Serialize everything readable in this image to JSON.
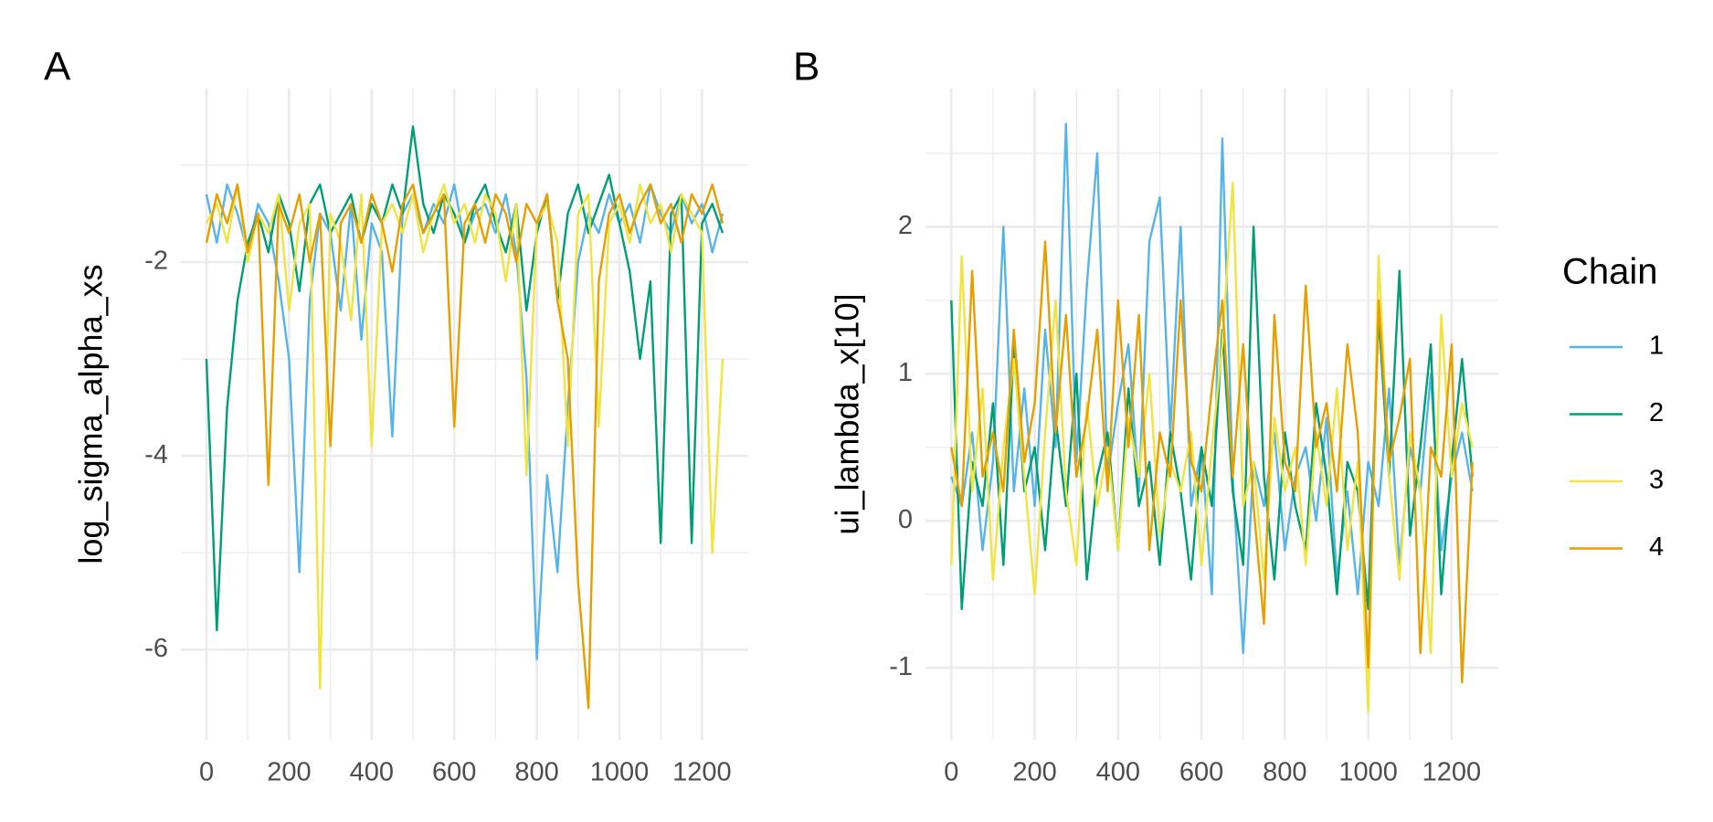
{
  "chart_data": [
    {
      "type": "line",
      "title": "A",
      "y_label": "log_sigma_alpha_xs",
      "x": [
        0,
        25,
        50,
        75,
        100,
        125,
        150,
        175,
        200,
        225,
        250,
        275,
        300,
        325,
        350,
        375,
        400,
        425,
        450,
        475,
        500,
        525,
        550,
        575,
        600,
        625,
        650,
        675,
        700,
        725,
        750,
        775,
        800,
        825,
        850,
        875,
        900,
        925,
        950,
        975,
        1000,
        1025,
        1050,
        1075,
        1100,
        1125,
        1150,
        1175,
        1200,
        1225,
        1250
      ],
      "xlim": [
        -62,
        1312
      ],
      "xticks": [
        0,
        200,
        400,
        600,
        800,
        1000,
        1200
      ],
      "minor_xticks": [
        100,
        300,
        500,
        700,
        900,
        1100
      ],
      "ylim": [
        -6.93,
        -0.21
      ],
      "yticks": [
        -6,
        -4,
        -2
      ],
      "minor_yticks": [
        -5,
        -3,
        -1
      ],
      "grid": true,
      "series": [
        {
          "color": "#56b4e9",
          "values": [
            -1.3,
            -1.8,
            -1.2,
            -1.5,
            -1.9,
            -1.4,
            -1.6,
            -2.2,
            -3.0,
            -5.2,
            -2.4,
            -1.5,
            -1.7,
            -2.5,
            -1.4,
            -2.8,
            -1.6,
            -1.9,
            -3.8,
            -1.5,
            -1.3,
            -1.7,
            -1.4,
            -1.6,
            -1.2,
            -1.8,
            -1.5,
            -1.4,
            -1.7,
            -1.3,
            -1.9,
            -3.2,
            -6.1,
            -4.2,
            -5.2,
            -3.5,
            -2.0,
            -1.5,
            -1.7,
            -1.3,
            -1.6,
            -1.4,
            -1.8,
            -1.2,
            -1.5,
            -1.7,
            -1.3,
            -1.6,
            -1.4,
            -1.9,
            -1.5
          ]
        },
        {
          "color": "#009e73",
          "values": [
            -3.0,
            -5.8,
            -3.5,
            -2.4,
            -1.8,
            -1.5,
            -1.9,
            -1.3,
            -1.6,
            -2.3,
            -1.4,
            -1.2,
            -1.7,
            -1.5,
            -1.3,
            -1.8,
            -1.4,
            -1.6,
            -1.2,
            -1.5,
            -0.6,
            -1.4,
            -1.7,
            -1.3,
            -1.5,
            -1.8,
            -1.4,
            -1.2,
            -1.6,
            -1.9,
            -1.4,
            -2.5,
            -1.7,
            -1.3,
            -2.4,
            -1.5,
            -1.2,
            -1.7,
            -1.4,
            -1.1,
            -1.6,
            -2.1,
            -3.0,
            -2.2,
            -4.9,
            -1.5,
            -1.3,
            -4.9,
            -1.6,
            -1.4,
            -1.7
          ]
        },
        {
          "color": "#f0e442",
          "values": [
            -1.6,
            -1.4,
            -1.8,
            -1.2,
            -2.0,
            -1.5,
            -1.7,
            -1.3,
            -2.5,
            -1.6,
            -1.4,
            -6.4,
            -1.5,
            -1.8,
            -2.6,
            -1.3,
            -3.9,
            -1.6,
            -1.4,
            -1.7,
            -1.3,
            -1.9,
            -1.5,
            -1.2,
            -1.6,
            -1.4,
            -1.8,
            -1.3,
            -1.5,
            -2.2,
            -1.4,
            -4.2,
            -1.6,
            -1.4,
            -1.8,
            -3.9,
            -1.5,
            -1.3,
            -3.7,
            -1.6,
            -1.4,
            -1.8,
            -1.2,
            -1.6,
            -1.4,
            -1.9,
            -1.3,
            -1.5,
            -1.7,
            -5.0,
            -3.0
          ]
        },
        {
          "color": "#e69f00",
          "values": [
            -1.8,
            -1.3,
            -1.6,
            -1.2,
            -1.9,
            -1.5,
            -4.3,
            -1.4,
            -1.7,
            -1.3,
            -2.0,
            -1.5,
            -3.9,
            -1.6,
            -1.4,
            -1.8,
            -1.3,
            -1.6,
            -2.1,
            -1.4,
            -1.2,
            -1.7,
            -1.5,
            -1.3,
            -3.7,
            -1.6,
            -1.4,
            -1.8,
            -1.3,
            -1.5,
            -2.0,
            -1.4,
            -1.6,
            -1.3,
            -2.4,
            -3.0,
            -5.3,
            -6.6,
            -2.2,
            -1.5,
            -1.3,
            -1.7,
            -1.4,
            -1.2,
            -1.6,
            -1.4,
            -1.8,
            -1.3,
            -1.5,
            -1.2,
            -1.6
          ]
        }
      ]
    },
    {
      "type": "line",
      "title": "B",
      "y_label": "ui_lambda_x[10]",
      "legend_title": "Chain",
      "x": [
        0,
        25,
        50,
        75,
        100,
        125,
        150,
        175,
        200,
        225,
        250,
        275,
        300,
        325,
        350,
        375,
        400,
        425,
        450,
        475,
        500,
        525,
        550,
        575,
        600,
        625,
        650,
        675,
        700,
        725,
        750,
        775,
        800,
        825,
        850,
        875,
        900,
        925,
        950,
        975,
        1000,
        1025,
        1050,
        1075,
        1100,
        1125,
        1150,
        1175,
        1200,
        1225,
        1250
      ],
      "xlim": [
        -62,
        1312
      ],
      "xticks": [
        0,
        200,
        400,
        600,
        800,
        1000,
        1200
      ],
      "minor_xticks": [
        100,
        300,
        500,
        700,
        900,
        1100
      ],
      "ylim": [
        -1.49,
        2.94
      ],
      "yticks": [
        -1,
        0,
        1,
        2
      ],
      "minor_yticks": [
        -0.5,
        0.5,
        1.5,
        2.5
      ],
      "grid": true,
      "series": [
        {
          "name": "1",
          "color": "#56b4e9",
          "values": [
            0.3,
            0.1,
            0.6,
            -0.2,
            0.4,
            2.0,
            0.2,
            0.9,
            0.1,
            1.3,
            0.5,
            2.7,
            0.4,
            1.6,
            2.5,
            0.3,
            0.8,
            1.2,
            0.2,
            1.9,
            2.2,
            0.6,
            2.0,
            0.1,
            0.5,
            -0.5,
            2.6,
            0.3,
            -0.9,
            0.4,
            0.1,
            0.6,
            -0.2,
            0.3,
            0.5,
            0.0,
            0.7,
            -0.4,
            0.2,
            -0.5,
            0.4,
            0.1,
            0.9,
            -0.3,
            0.5,
            0.2,
            1.0,
            -0.2,
            0.3,
            0.6,
            0.2
          ]
        },
        {
          "name": "2",
          "color": "#009e73",
          "values": [
            1.5,
            -0.6,
            0.4,
            0.1,
            0.8,
            -0.3,
            1.2,
            0.2,
            0.5,
            -0.2,
            0.7,
            0.1,
            1.0,
            -0.4,
            0.3,
            0.6,
            -0.2,
            0.9,
            0.1,
            0.4,
            -0.3,
            0.6,
            0.2,
            -0.4,
            0.5,
            0.1,
            1.3,
            0.2,
            -0.3,
            2.0,
            0.3,
            -0.4,
            0.6,
            0.1,
            -0.2,
            0.8,
            0.3,
            -0.5,
            0.4,
            0.2,
            -0.6,
            1.4,
            0.3,
            1.7,
            -0.1,
            0.5,
            1.2,
            -0.5,
            0.4,
            1.1,
            0.3
          ]
        },
        {
          "name": "3",
          "color": "#f0e442",
          "values": [
            -0.3,
            1.8,
            0.2,
            0.9,
            -0.4,
            0.5,
            1.1,
            0.3,
            -0.5,
            0.6,
            1.5,
            0.2,
            -0.3,
            0.8,
            0.1,
            0.5,
            -0.2,
            0.7,
            0.3,
            1.0,
            -0.1,
            0.4,
            0.2,
            0.6,
            -0.3,
            0.5,
            1.2,
            2.3,
            0.1,
            0.4,
            -0.4,
            0.7,
            0.2,
            0.5,
            -0.3,
            0.6,
            0.1,
            0.9,
            -0.2,
            0.4,
            -1.3,
            1.8,
            0.3,
            -0.4,
            0.6,
            0.2,
            -0.9,
            1.4,
            0.3,
            0.8,
            0.5
          ]
        },
        {
          "name": "4",
          "color": "#e69f00",
          "values": [
            0.5,
            0.1,
            1.7,
            0.3,
            0.6,
            0.2,
            1.3,
            0.4,
            0.8,
            1.9,
            0.6,
            1.4,
            0.3,
            0.7,
            1.3,
            0.2,
            1.5,
            0.5,
            1.4,
            -0.2,
            0.6,
            0.3,
            1.5,
            0.4,
            0.2,
            0.9,
            1.5,
            0.3,
            1.2,
            0.1,
            -0.7,
            1.4,
            0.4,
            0.2,
            1.6,
            0.5,
            0.8,
            0.2,
            1.2,
            0.6,
            -1.0,
            1.5,
            0.4,
            0.7,
            1.1,
            -0.9,
            0.5,
            0.3,
            1.2,
            -1.1,
            0.4
          ]
        }
      ]
    }
  ]
}
